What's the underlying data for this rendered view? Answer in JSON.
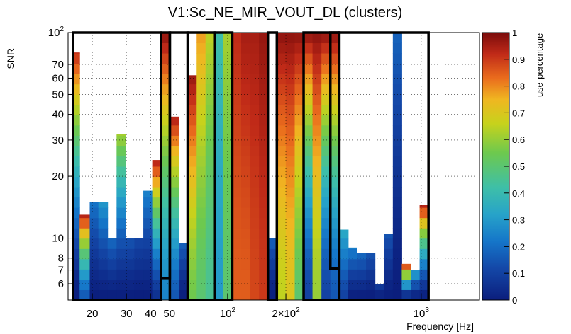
{
  "chart_data": {
    "type": "heatmap",
    "title": "V1:Sc_NE_MIR_VOUT_DL (clusters)",
    "xlabel": "Frequency [Hz]",
    "ylabel": "SNR",
    "zlabel": "use-percentage",
    "x_scale": "log",
    "y_scale": "log",
    "xlim": [
      15,
      2000
    ],
    "ylim": [
      5,
      100
    ],
    "zlim": [
      0,
      1
    ],
    "x_ticks": [
      {
        "value": 20,
        "label": "20"
      },
      {
        "value": 30,
        "label": "30"
      },
      {
        "value": 40,
        "label": "40"
      },
      {
        "value": 50,
        "label": "50"
      },
      {
        "value": 100,
        "label": "10",
        "sup": "2"
      },
      {
        "value": 200,
        "label": "2×10",
        "sup": "2"
      },
      {
        "value": 1000,
        "label": "10",
        "sup": "3"
      }
    ],
    "y_ticks": [
      {
        "value": 6,
        "label": "6"
      },
      {
        "value": 7,
        "label": "7"
      },
      {
        "value": 8,
        "label": "8"
      },
      {
        "value": 10,
        "label": "10"
      },
      {
        "value": 20,
        "label": "20"
      },
      {
        "value": 30,
        "label": "30"
      },
      {
        "value": 40,
        "label": "40"
      },
      {
        "value": 50,
        "label": "50"
      },
      {
        "value": 60,
        "label": "60"
      },
      {
        "value": 70,
        "label": "70"
      },
      {
        "value": 100,
        "label": "10",
        "sup": "2"
      }
    ],
    "z_ticks": [
      {
        "value": 0,
        "label": "0"
      },
      {
        "value": 0.1,
        "label": "0.1"
      },
      {
        "value": 0.2,
        "label": "0.2"
      },
      {
        "value": 0.3,
        "label": "0.3"
      },
      {
        "value": 0.4,
        "label": "0.4"
      },
      {
        "value": 0.5,
        "label": "0.5"
      },
      {
        "value": 0.6,
        "label": "0.6"
      },
      {
        "value": 0.7,
        "label": "0.7"
      },
      {
        "value": 0.8,
        "label": "0.8"
      },
      {
        "value": 0.9,
        "label": "0.9"
      },
      {
        "value": 1,
        "label": "1"
      }
    ],
    "bands": [
      {
        "f": [
          15.9,
          17.2
        ],
        "snr_top": 80,
        "z_top": 0.92,
        "z_bottom": 0.0
      },
      {
        "f": [
          17.2,
          19.4
        ],
        "snr_top": 13,
        "z_top": 0.95,
        "z_bottom": 0.15
      },
      {
        "f": [
          19.4,
          21.5
        ],
        "snr_top": 15,
        "z_top": 0.22,
        "z_bottom": 0.0
      },
      {
        "f": [
          21.5,
          24.0
        ],
        "snr_top": 15,
        "z_top": 0.3,
        "z_bottom": 0.0
      },
      {
        "f": [
          24.0,
          26.7
        ],
        "snr_top": 10,
        "z_top": 0.2,
        "z_bottom": 0.0
      },
      {
        "f": [
          26.7,
          29.7
        ],
        "snr_top": 32,
        "z_top": 0.62,
        "z_bottom": 0.0
      },
      {
        "f": [
          29.7,
          33.0
        ],
        "snr_top": 10,
        "z_top": 0.15,
        "z_bottom": 0.0
      },
      {
        "f": [
          33.0,
          36.7
        ],
        "snr_top": 10,
        "z_top": 0.12,
        "z_bottom": 0.0
      },
      {
        "f": [
          36.7,
          40.8
        ],
        "snr_top": 17,
        "z_top": 0.25,
        "z_bottom": 0.0
      },
      {
        "f": [
          40.8,
          45.3
        ],
        "snr_top": 24,
        "z_top": 0.95,
        "z_bottom": 0.05
      },
      {
        "f": [
          45.3,
          50.3
        ],
        "snr_top": 100,
        "z_top": 0.98,
        "z_bottom": 0.25
      },
      {
        "f": [
          50.3,
          56.0
        ],
        "snr_top": 39,
        "z_top": 0.95,
        "z_bottom": 0.15
      },
      {
        "f": [
          56.0,
          62.2
        ],
        "snr_top": 9.5,
        "z_top": 0.18,
        "z_bottom": 0.0
      },
      {
        "f": [
          62.2,
          69.2
        ],
        "snr_top": 62,
        "z_top": 0.97,
        "z_bottom": 0.55
      },
      {
        "f": [
          69.2,
          76.9
        ],
        "snr_top": 100,
        "z_top": 0.78,
        "z_bottom": 0.5
      },
      {
        "f": [
          76.9,
          85.5
        ],
        "snr_top": 100,
        "z_top": 0.65,
        "z_bottom": 0.45
      },
      {
        "f": [
          85.5,
          95.1
        ],
        "snr_top": 100,
        "z_top": 0.42,
        "z_bottom": 0.3
      },
      {
        "f": [
          95.1,
          105.7
        ],
        "snr_top": 100,
        "z_top": 0.62,
        "z_bottom": 0.5
      },
      {
        "f": [
          105.7,
          117.5
        ],
        "snr_top": 100,
        "z_top": 0.92,
        "z_bottom": 0.85
      },
      {
        "f": [
          117.5,
          130.7
        ],
        "snr_top": 100,
        "z_top": 0.95,
        "z_bottom": 0.85
      },
      {
        "f": [
          130.7,
          145.3
        ],
        "snr_top": 100,
        "z_top": 0.95,
        "z_bottom": 0.88
      },
      {
        "f": [
          145.3,
          161.5
        ],
        "snr_top": 100,
        "z_top": 0.97,
        "z_bottom": 0.9
      },
      {
        "f": [
          161.5,
          179.6
        ],
        "snr_top": 10,
        "z_top": 0.18,
        "z_bottom": 0.0
      },
      {
        "f": [
          179.6,
          199.7
        ],
        "snr_top": 100,
        "z_top": 0.98,
        "z_bottom": 0.65
      },
      {
        "f": [
          199.7,
          222.1
        ],
        "snr_top": 100,
        "z_top": 0.98,
        "z_bottom": 0.7
      },
      {
        "f": [
          222.1,
          246.9
        ],
        "snr_top": 100,
        "z_top": 0.98,
        "z_bottom": 0.5
      },
      {
        "f": [
          246.9,
          274.5
        ],
        "snr_top": 100,
        "z_top": 0.98,
        "z_bottom": 0.1
      },
      {
        "f": [
          274.5,
          305.3
        ],
        "snr_top": 100,
        "z_top": 0.98,
        "z_bottom": 0.6
      },
      {
        "f": [
          305.3,
          339.4
        ],
        "snr_top": 100,
        "z_top": 0.98,
        "z_bottom": 0.1
      },
      {
        "f": [
          339.4,
          377.4
        ],
        "snr_top": 100,
        "z_top": 0.98,
        "z_bottom": 0.15
      },
      {
        "f": [
          377.4,
          419.7
        ],
        "snr_top": 11,
        "z_top": 0.35,
        "z_bottom": 0.1
      },
      {
        "f": [
          419.7,
          466.7
        ],
        "snr_top": 9,
        "z_top": 0.25,
        "z_bottom": 0.0
      },
      {
        "f": [
          466.7,
          519.0
        ],
        "snr_top": 8.5,
        "z_top": 0.2,
        "z_bottom": 0.0
      },
      {
        "f": [
          519.0,
          577.1
        ],
        "snr_top": 8.5,
        "z_top": 0.15,
        "z_bottom": 0.0
      },
      {
        "f": [
          577.1,
          641.7
        ],
        "snr_top": 6,
        "z_top": 0.1,
        "z_bottom": 0.0
      },
      {
        "f": [
          641.7,
          713.6
        ],
        "snr_top": 10.5,
        "z_top": 0.15,
        "z_bottom": 0.0
      },
      {
        "f": [
          713.6,
          793.5
        ],
        "snr_top": 100,
        "z_top": 0.18,
        "z_bottom": 0.0
      },
      {
        "f": [
          793.5,
          882.4
        ],
        "snr_top": 7.5,
        "z_top": 0.95,
        "z_bottom": 0.0
      },
      {
        "f": [
          882.4,
          981.2
        ],
        "snr_top": 7,
        "z_top": 0.35,
        "z_bottom": 0.0
      },
      {
        "f": [
          981.2,
          1091.1
        ],
        "snr_top": 14.5,
        "z_top": 0.95,
        "z_bottom": 0.0
      }
    ],
    "cluster_outlines": [
      {
        "f": [
          15.9,
          45.3
        ],
        "snr": [
          5,
          100
        ]
      },
      {
        "f": [
          45.3,
          50.3
        ],
        "snr": [
          6.4,
          100
        ]
      },
      {
        "f": [
          50.3,
          62.2
        ],
        "snr": [
          5,
          100
        ]
      },
      {
        "f": [
          62.2,
          85.5
        ],
        "snr": [
          5,
          100
        ]
      },
      {
        "f": [
          85.5,
          105.7
        ],
        "snr": [
          5,
          100
        ]
      },
      {
        "f": [
          161.5,
          179.6
        ],
        "snr": [
          5,
          100
        ]
      },
      {
        "f": [
          246.9,
          377.4
        ],
        "snr": [
          5,
          100
        ]
      },
      {
        "f": [
          339.4,
          377.4
        ],
        "snr": [
          7.1,
          100
        ]
      },
      {
        "f": [
          377.4,
          1091.1
        ],
        "snr": [
          5,
          100
        ]
      }
    ]
  }
}
